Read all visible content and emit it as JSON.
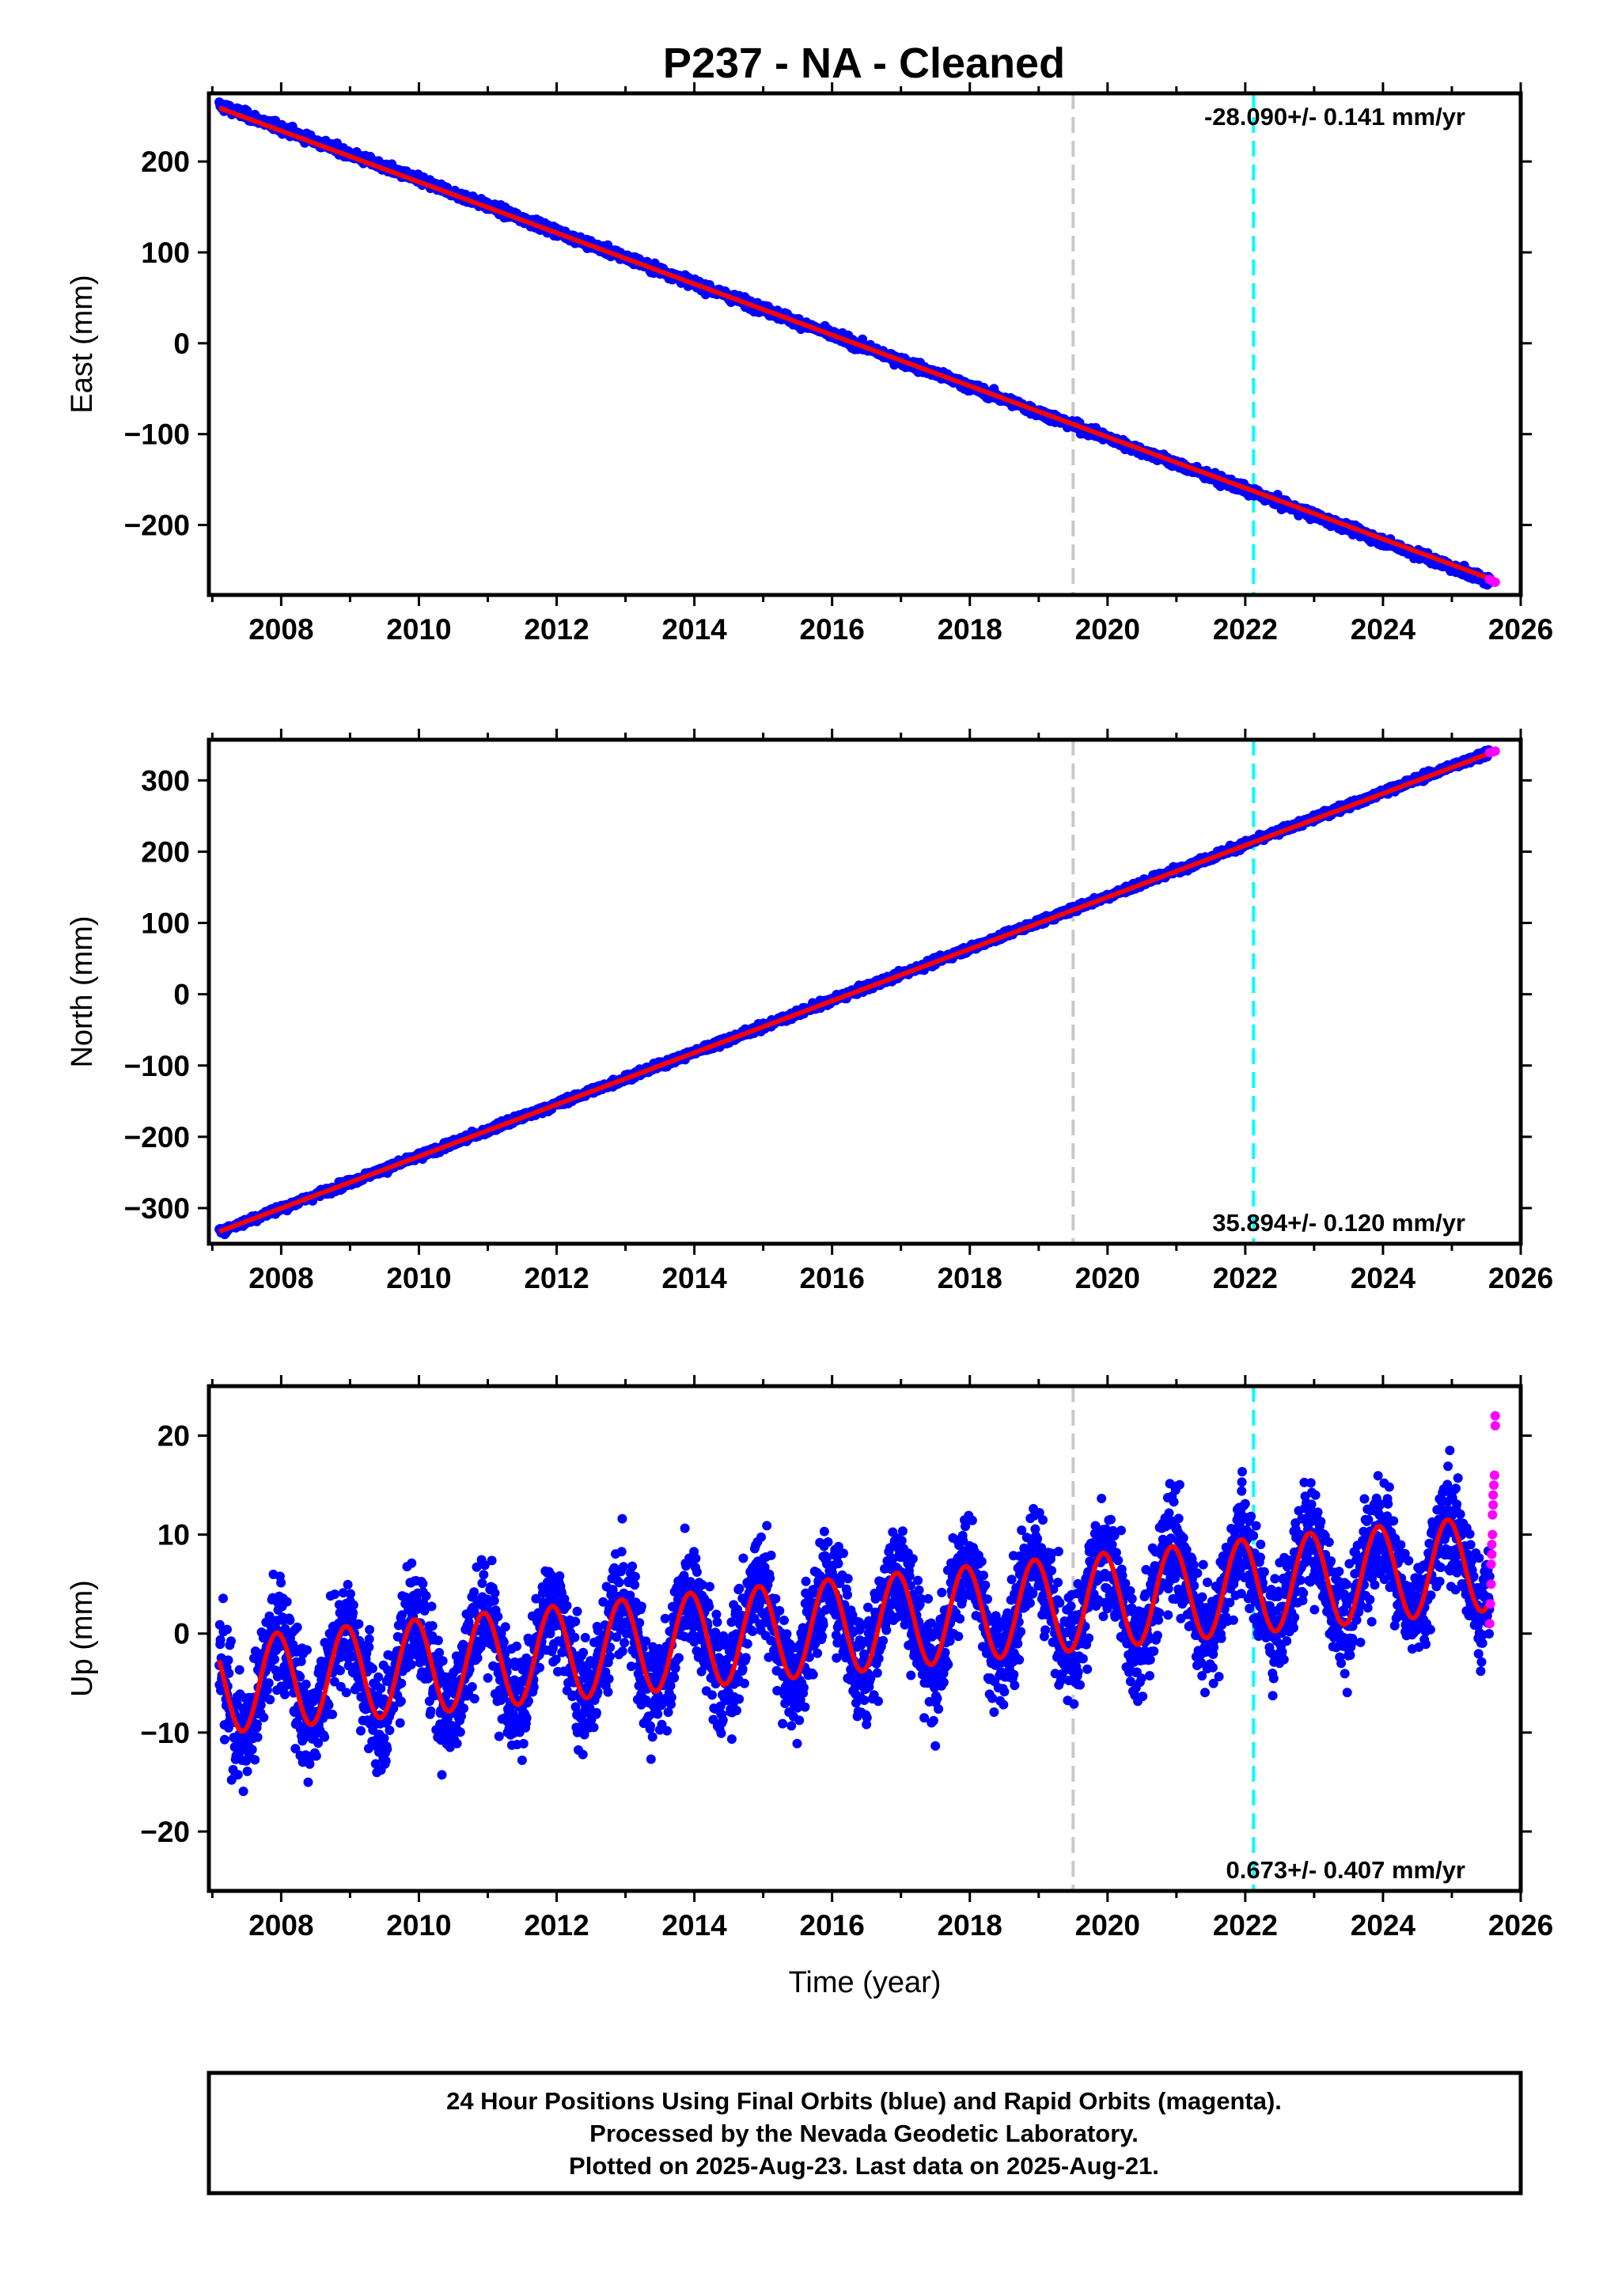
{
  "figure": {
    "title": "P237  - NA - Cleaned",
    "footer": [
      "24 Hour Positions Using Final Orbits (blue) and Rapid Orbits (magenta).",
      "Processed by the Nevada Geodetic Laboratory.",
      "Plotted on 2025-Aug-23. Last data on 2025-Aug-21."
    ],
    "colors": {
      "final_orbits": "#0000ff",
      "rapid_orbits": "#ff00ff",
      "model_fit": "#ff0000",
      "event_line_1": "#c8c8c8",
      "event_line_2": "#00ffff"
    }
  },
  "chart_data": [
    {
      "type": "scatter",
      "panel": "east",
      "ylabel": "East (mm)",
      "xlabel": "",
      "xlim": [
        2006.95,
        2026.0
      ],
      "ylim": [
        -277,
        275
      ],
      "x_ticks": [
        2008,
        2010,
        2012,
        2014,
        2016,
        2018,
        2020,
        2022,
        2024,
        2026
      ],
      "y_ticks": [
        -200,
        -100,
        0,
        100,
        200
      ],
      "y_tick_labels": [
        "−200",
        "−100",
        "0",
        "100",
        "200"
      ],
      "rate_label": "-28.090+/- 0.141 mm/yr",
      "rate_position": "top-right",
      "event_lines": [
        2019.5,
        2022.12
      ],
      "series": [
        {
          "name": "final",
          "style": "points",
          "trend": {
            "x0": 2007.1,
            "y0": 262,
            "x1": 2025.55,
            "y1": -262
          },
          "scatter": 3.5
        },
        {
          "name": "fit",
          "style": "line",
          "trend": {
            "x0": 2007.1,
            "y0": 259,
            "x1": 2025.55,
            "y1": -259
          }
        },
        {
          "name": "rapid",
          "style": "points",
          "x": [
            2025.55,
            2025.6,
            2025.63
          ],
          "y": [
            -260,
            -262,
            -263
          ]
        }
      ]
    },
    {
      "type": "scatter",
      "panel": "north",
      "ylabel": "North (mm)",
      "xlabel": "",
      "xlim": [
        2006.95,
        2026.0
      ],
      "ylim": [
        -350,
        357
      ],
      "x_ticks": [
        2008,
        2010,
        2012,
        2014,
        2016,
        2018,
        2020,
        2022,
        2024,
        2026
      ],
      "y_ticks": [
        -300,
        -200,
        -100,
        0,
        100,
        200,
        300
      ],
      "y_tick_labels": [
        "−300",
        "−200",
        "−100",
        "0",
        "100",
        "200",
        "300"
      ],
      "rate_label": "35.894+/- 0.120 mm/yr",
      "rate_position": "bottom-right",
      "event_lines": [
        2019.5,
        2022.12
      ],
      "series": [
        {
          "name": "final",
          "style": "points",
          "trend": {
            "x0": 2007.1,
            "y0": -333,
            "x1": 2025.55,
            "y1": 340
          },
          "scatter": 3.5
        },
        {
          "name": "fit",
          "style": "line",
          "trend": {
            "x0": 2007.1,
            "y0": -333,
            "x1": 2025.55,
            "y1": 338
          }
        },
        {
          "name": "rapid",
          "style": "points",
          "x": [
            2025.55,
            2025.6,
            2025.63
          ],
          "y": [
            339,
            340,
            341
          ]
        }
      ]
    },
    {
      "type": "scatter",
      "panel": "up",
      "ylabel": "Up (mm)",
      "xlabel": "Time (year)",
      "xlim": [
        2006.95,
        2026.0
      ],
      "ylim": [
        -26,
        25
      ],
      "x_ticks": [
        2008,
        2010,
        2012,
        2014,
        2016,
        2018,
        2020,
        2022,
        2024,
        2026
      ],
      "y_ticks": [
        -20,
        -10,
        0,
        10,
        20
      ],
      "y_tick_labels": [
        "−20",
        "−10",
        "0",
        "10",
        "20"
      ],
      "rate_label": "0.673+/- 0.407 mm/yr",
      "rate_position": "bottom-right",
      "event_lines": [
        2019.5,
        2022.12
      ],
      "series": [
        {
          "name": "final",
          "style": "points",
          "seasonal": {
            "offset": -5.3,
            "rate": 0.673,
            "amplitude": 4.8,
            "period": 1.0,
            "phase": 0.82
          },
          "scatter": 3.8
        },
        {
          "name": "fit",
          "style": "line",
          "seasonal": {
            "offset": -5.3,
            "rate": 0.673,
            "amplitude": 4.8,
            "period": 1.0,
            "phase": 0.82
          }
        },
        {
          "name": "rapid",
          "style": "points",
          "x": [
            2025.55,
            2025.56,
            2025.57,
            2025.57,
            2025.58,
            2025.58,
            2025.59,
            2025.59,
            2025.6,
            2025.6,
            2025.61,
            2025.62,
            2025.62,
            2025.63,
            2025.63
          ],
          "y": [
            1,
            3,
            5,
            7,
            8,
            9,
            10,
            12,
            13,
            14,
            15,
            16,
            16,
            21,
            22
          ]
        }
      ]
    }
  ]
}
